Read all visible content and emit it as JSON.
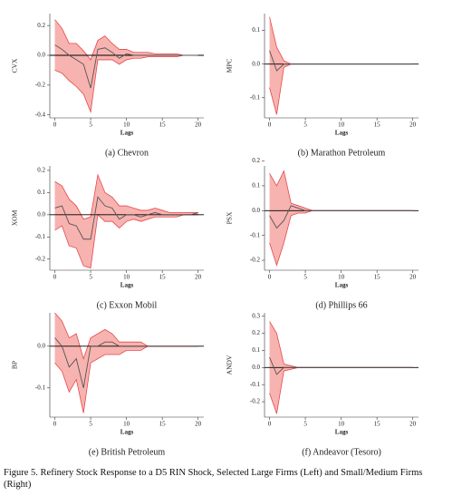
{
  "chart_data": [
    {
      "type": "line",
      "title": "(a) Chevron",
      "ylabel": "CVX",
      "xlabel": "Lags",
      "x": [
        0,
        1,
        2,
        3,
        4,
        5,
        6,
        7,
        8,
        9,
        10,
        11,
        12,
        13,
        14,
        15,
        16,
        17,
        18,
        19,
        20
      ],
      "values": [
        0.07,
        0.04,
        0.0,
        -0.03,
        -0.06,
        -0.22,
        0.04,
        0.05,
        0.02,
        -0.02,
        0.01,
        0.0,
        0.0,
        0.0,
        0.0,
        0.0,
        0.0,
        0.0,
        0.0,
        0.0,
        0.0
      ],
      "band": {
        "upper": [
          0.24,
          0.18,
          0.08,
          0.08,
          0.03,
          -0.03,
          0.1,
          0.13,
          0.08,
          0.04,
          0.04,
          0.02,
          0.02,
          0.02,
          0.01,
          0.01,
          0.01,
          0.01,
          0.0,
          0.0,
          0.0
        ],
        "lower": [
          -0.1,
          -0.12,
          -0.17,
          -0.21,
          -0.26,
          -0.38,
          -0.03,
          -0.03,
          -0.03,
          -0.06,
          -0.03,
          -0.02,
          -0.02,
          -0.01,
          -0.01,
          -0.01,
          -0.01,
          -0.01,
          0.0,
          0.0,
          0.0
        ]
      },
      "color": "#555555",
      "band_color": "#f7b3b0",
      "band_edge_color": "#e8474a",
      "xlim": [
        -0.7,
        20.8
      ],
      "xticks": [
        0,
        5,
        10,
        15,
        20
      ],
      "ylim": [
        -0.42,
        0.28
      ],
      "yticks": [
        0.2,
        {
          "value": 0,
          "label": "0.0"
        },
        -0.2,
        -0.4
      ]
    },
    {
      "type": "line",
      "title": "(b) Marathon Petroleum",
      "ylabel": "MPC",
      "xlabel": "Lags",
      "x": [
        0,
        1,
        2,
        3,
        4,
        5,
        6,
        7,
        8,
        9,
        10,
        11,
        12,
        13,
        14,
        15,
        16,
        17,
        18,
        19,
        20
      ],
      "values": [
        0.04,
        -0.02,
        0.0,
        0.0,
        0.0,
        0.0,
        0.0,
        0.0,
        0.0,
        0.0,
        0.0,
        0.0,
        0.0,
        0.0,
        0.0,
        0.0,
        0.0,
        0.0,
        0.0,
        0.0,
        0.0
      ],
      "band": {
        "upper": [
          0.14,
          0.05,
          0.01,
          0.0,
          0.0,
          0.0,
          0.0,
          0.0,
          0.0,
          0.0,
          0.0,
          0.0,
          0.0,
          0.0,
          0.0,
          0.0,
          0.0,
          0.0,
          0.0,
          0.0,
          0.0
        ],
        "lower": [
          -0.07,
          -0.15,
          -0.01,
          0.0,
          0.0,
          0.0,
          0.0,
          0.0,
          0.0,
          0.0,
          0.0,
          0.0,
          0.0,
          0.0,
          0.0,
          0.0,
          0.0,
          0.0,
          0.0,
          0.0,
          0.0
        ]
      },
      "color": "#555555",
      "band_color": "#f7b3b0",
      "band_edge_color": "#e8474a",
      "xlim": [
        -0.7,
        20.8
      ],
      "xticks": [
        0,
        5,
        10,
        15,
        20
      ],
      "ylim": [
        -0.16,
        0.15
      ],
      "yticks": [
        0.1,
        {
          "value": 0,
          "label": "0.0"
        },
        -0.1
      ]
    },
    {
      "type": "line",
      "title": "(c) Exxon Mobil",
      "ylabel": "XOM",
      "xlabel": "Lags",
      "x": [
        0,
        1,
        2,
        3,
        4,
        5,
        6,
        7,
        8,
        9,
        10,
        11,
        12,
        13,
        14,
        15,
        16,
        17,
        18,
        19,
        20
      ],
      "values": [
        0.03,
        0.04,
        -0.04,
        -0.05,
        -0.11,
        -0.11,
        0.08,
        0.04,
        0.03,
        -0.02,
        0.0,
        0.0,
        -0.01,
        0.0,
        0.01,
        0.0,
        0.0,
        0.0,
        0.0,
        0.0,
        0.01
      ],
      "band": {
        "upper": [
          0.15,
          0.13,
          0.07,
          0.04,
          -0.02,
          -0.01,
          0.18,
          0.1,
          0.08,
          0.04,
          0.04,
          0.03,
          0.02,
          0.02,
          0.03,
          0.02,
          0.01,
          0.01,
          0.01,
          0.01,
          0.01
        ],
        "lower": [
          -0.07,
          -0.05,
          -0.14,
          -0.15,
          -0.23,
          -0.24,
          0.0,
          -0.03,
          -0.03,
          -0.06,
          -0.03,
          -0.02,
          -0.03,
          -0.02,
          -0.01,
          -0.01,
          -0.01,
          -0.01,
          0.0,
          0.0,
          0.0
        ]
      },
      "color": "#555555",
      "band_color": "#f7b3b0",
      "band_edge_color": "#e8474a",
      "xlim": [
        -0.7,
        20.8
      ],
      "xticks": [
        0,
        5,
        10,
        15,
        20
      ],
      "ylim": [
        -0.25,
        0.22
      ],
      "yticks": [
        0.2,
        0.1,
        {
          "value": 0,
          "label": "0.0"
        },
        -0.1,
        -0.2
      ]
    },
    {
      "type": "line",
      "title": "(d) Phillips 66",
      "ylabel": "PSX",
      "xlabel": "Lags",
      "x": [
        0,
        1,
        2,
        3,
        4,
        5,
        6,
        7,
        8,
        9,
        10,
        11,
        12,
        13,
        14,
        15,
        16,
        17,
        18,
        19,
        20
      ],
      "values": [
        -0.02,
        -0.07,
        -0.04,
        0.02,
        0.01,
        0.0,
        0.0,
        0.0,
        0.0,
        0.0,
        0.0,
        0.0,
        0.0,
        0.0,
        0.0,
        0.0,
        0.0,
        0.0,
        0.0,
        0.0,
        0.0
      ],
      "band": {
        "upper": [
          0.15,
          0.1,
          0.16,
          0.03,
          0.02,
          0.01,
          0.0,
          0.0,
          0.0,
          0.0,
          0.0,
          0.0,
          0.0,
          0.0,
          0.0,
          0.0,
          0.0,
          0.0,
          0.0,
          0.0,
          0.0
        ],
        "lower": [
          -0.13,
          -0.22,
          -0.13,
          -0.02,
          -0.01,
          -0.01,
          0.0,
          0.0,
          0.0,
          0.0,
          0.0,
          0.0,
          0.0,
          0.0,
          0.0,
          0.0,
          0.0,
          0.0,
          0.0,
          0.0,
          0.0
        ]
      },
      "color": "#555555",
      "band_color": "#f7b3b0",
      "band_edge_color": "#e8474a",
      "xlim": [
        -0.7,
        20.8
      ],
      "xticks": [
        0,
        5,
        10,
        15,
        20
      ],
      "ylim": [
        -0.24,
        0.18
      ],
      "yticks": [
        0.2,
        0.1,
        {
          "value": 0,
          "label": "0.0"
        },
        -0.1,
        -0.2
      ]
    },
    {
      "type": "line",
      "title": "(e) British Petroleum",
      "ylabel": "BP",
      "xlabel": "Lags",
      "x": [
        0,
        1,
        2,
        3,
        4,
        5,
        6,
        7,
        8,
        9,
        10,
        11,
        12,
        13,
        14,
        15,
        16,
        17,
        18,
        19,
        20
      ],
      "values": [
        0.02,
        0.0,
        -0.05,
        -0.03,
        -0.1,
        0.0,
        0.0,
        0.01,
        0.01,
        0.0,
        0.0,
        0.0,
        0.0,
        0.0,
        0.0,
        0.0,
        0.0,
        0.0,
        0.0,
        0.0,
        0.0
      ],
      "band": {
        "upper": [
          0.08,
          0.06,
          0.02,
          0.03,
          -0.03,
          0.02,
          0.03,
          0.04,
          0.03,
          0.01,
          0.01,
          0.01,
          0.01,
          0.0,
          0.0,
          0.0,
          0.0,
          0.0,
          0.0,
          0.0,
          0.0
        ],
        "lower": [
          -0.04,
          -0.06,
          -0.11,
          -0.08,
          -0.16,
          -0.04,
          -0.03,
          -0.02,
          -0.02,
          -0.02,
          -0.01,
          -0.01,
          -0.01,
          0.0,
          0.0,
          0.0,
          0.0,
          0.0,
          0.0,
          0.0,
          0.0
        ]
      },
      "color": "#555555",
      "band_color": "#f7b3b0",
      "band_edge_color": "#e8474a",
      "xlim": [
        -0.7,
        20.8
      ],
      "xticks": [
        0,
        5,
        10,
        15,
        20
      ],
      "ylim": [
        -0.17,
        0.08
      ],
      "yticks": [
        {
          "value": 0,
          "label": "0.0"
        },
        -0.1
      ]
    },
    {
      "type": "line",
      "title": "(f) Andeavor (Tesoro)",
      "ylabel": "ANDV",
      "xlabel": "Lags",
      "x": [
        0,
        1,
        2,
        3,
        4,
        5,
        6,
        7,
        8,
        9,
        10,
        11,
        12,
        13,
        14,
        15,
        16,
        17,
        18,
        19,
        20
      ],
      "values": [
        0.06,
        -0.04,
        0.0,
        0.0,
        0.0,
        0.0,
        0.0,
        0.0,
        0.0,
        0.0,
        0.0,
        0.0,
        0.0,
        0.0,
        0.0,
        0.0,
        0.0,
        0.0,
        0.0,
        0.0,
        0.0
      ],
      "band": {
        "upper": [
          0.27,
          0.2,
          0.02,
          0.01,
          0.0,
          0.0,
          0.0,
          0.0,
          0.0,
          0.0,
          0.0,
          0.0,
          0.0,
          0.0,
          0.0,
          0.0,
          0.0,
          0.0,
          0.0,
          0.0,
          0.0
        ],
        "lower": [
          -0.15,
          -0.27,
          -0.02,
          -0.01,
          0.0,
          0.0,
          0.0,
          0.0,
          0.0,
          0.0,
          0.0,
          0.0,
          0.0,
          0.0,
          0.0,
          0.0,
          0.0,
          0.0,
          0.0,
          0.0,
          0.0
        ]
      },
      "color": "#555555",
      "band_color": "#f7b3b0",
      "band_edge_color": "#e8474a",
      "xlim": [
        -0.7,
        20.8
      ],
      "xticks": [
        0,
        5,
        10,
        15,
        20
      ],
      "ylim": [
        -0.29,
        0.32
      ],
      "yticks": [
        0.3,
        0.2,
        0.1,
        {
          "value": 0,
          "label": "0.0"
        },
        -0.1,
        -0.2
      ]
    }
  ],
  "caption": "Figure 5.  Refinery Stock Response to a D5 RIN Shock, Selected Large Firms (Left) and Small/Medium Firms (Right)"
}
